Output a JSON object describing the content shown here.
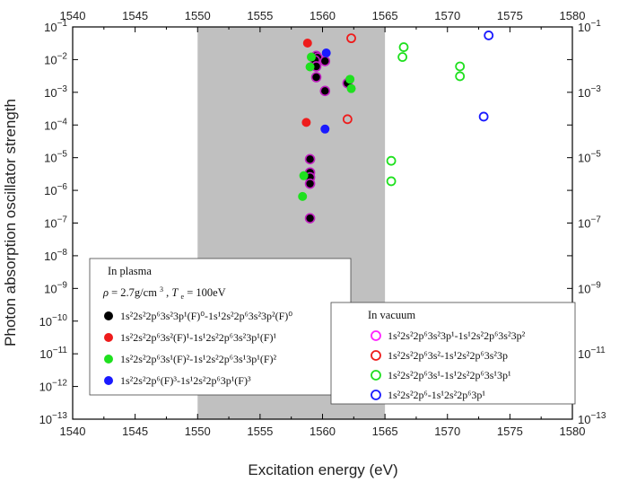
{
  "chart_data": {
    "type": "scatter",
    "xlabel": "Excitation energy (eV)",
    "ylabel": "Photon absorption oscillator strength",
    "xlim": [
      1540,
      1580
    ],
    "ylim_log10": [
      -13,
      -1
    ],
    "x_ticks": [
      "1540",
      "1545",
      "1550",
      "1555",
      "1560",
      "1565",
      "1570",
      "1575",
      "1580"
    ],
    "y_tick_exponents": [
      -13,
      -12,
      -11,
      -10,
      -9,
      -8,
      -7,
      -6,
      -5,
      -4,
      -3,
      -2,
      -1
    ],
    "right_tick_exponents": [
      -13,
      -11,
      -9,
      -7,
      -5,
      -3,
      -1
    ],
    "shaded_region": {
      "x_from": 1550,
      "x_to": 1565,
      "color": "#c0c0c0"
    },
    "legend_plasma": {
      "title": "In plasma",
      "params": {
        "rho": "ρ",
        "rho_value": "= 2.7g/cm",
        "rho_exp": "3",
        "T": "T",
        "T_sub": "e",
        "T_value": "= 100eV"
      },
      "entries": [
        {
          "label": "1s²2s²2p⁶3s²3p¹(F)⁰-1s¹2s²2p⁶3s²3p²(F)⁰",
          "color": "#000000",
          "marker": "filled"
        },
        {
          "label": "1s²2s²2p⁶3s²(F)¹-1s¹2s²2p⁶3s²3p¹(F)¹",
          "color": "#ee1c1c",
          "marker": "filled"
        },
        {
          "label": "1s²2s²2p⁶3s¹(F)²-1s¹2s²2p⁶3s¹3p¹(F)²",
          "color": "#1fe01f",
          "marker": "filled"
        },
        {
          "label": "1s²2s²2p⁶(F)³-1s¹2s²2p⁶3p¹(F)³",
          "color": "#1a1aff",
          "marker": "filled"
        }
      ]
    },
    "legend_vacuum": {
      "title": "In vacuum",
      "entries": [
        {
          "label": "1s²2s²2p⁶3s²3p¹-1s¹2s²2p⁶3s²3p²",
          "color": "#ff22ff",
          "marker": "open"
        },
        {
          "label": "1s²2s²2p⁶3s²-1s¹2s²2p⁶3s²3p",
          "color": "#ee1c1c",
          "marker": "open"
        },
        {
          "label": "1s²2s²2p⁶3s¹-1s¹2s²2p⁶3s¹3p¹",
          "color": "#1fe01f",
          "marker": "open"
        },
        {
          "label": "1s²2s²2p⁶-1s¹2s²2p⁶3p¹",
          "color": "#1a1aff",
          "marker": "open"
        }
      ]
    },
    "series": [
      {
        "name": "1s²2s²2p⁶3s²3p¹(F)⁰-1s¹2s²2p⁶3s²3p²(F)⁰",
        "color": "#000000",
        "marker": "filled",
        "stroke": "#c020c0",
        "points": [
          [
            1559.5,
            0.013
          ],
          [
            1559.6,
            0.0115
          ],
          [
            1559.4,
            0.0095
          ],
          [
            1560.2,
            0.009
          ],
          [
            1559.5,
            0.0062
          ],
          [
            1559.5,
            0.0029
          ],
          [
            1562.0,
            0.0019
          ],
          [
            1560.2,
            0.0011
          ],
          [
            1559.0,
            9e-06
          ],
          [
            1559.0,
            3.5e-06
          ],
          [
            1559.0,
            2.5e-06
          ],
          [
            1559.0,
            1.6e-06
          ],
          [
            1559.0,
            1.4e-07
          ]
        ]
      },
      {
        "name": "1s²2s²2p⁶3s²(F)¹-1s¹2s²2p⁶3s²3p¹(F)¹",
        "color": "#ee1c1c",
        "marker": "filled",
        "points": [
          [
            1558.8,
            0.032
          ],
          [
            1558.7,
            0.00012
          ]
        ]
      },
      {
        "name": "1s²2s²2p⁶3s¹(F)²-1s¹2s²2p⁶3s¹3p¹(F)²",
        "color": "#1fe01f",
        "marker": "filled",
        "points": [
          [
            1559.1,
            0.012
          ],
          [
            1559.0,
            0.006
          ],
          [
            1562.2,
            0.0025
          ],
          [
            1562.3,
            0.0013
          ],
          [
            1558.5,
            2.8e-06
          ],
          [
            1558.4,
            6.5e-07
          ]
        ]
      },
      {
        "name": "1s²2s²2p⁶(F)³-1s¹2s²2p⁶3p¹(F)³",
        "color": "#1a1aff",
        "marker": "filled",
        "points": [
          [
            1560.3,
            0.016
          ],
          [
            1560.2,
            7.5e-05
          ]
        ]
      },
      {
        "name": "1s²2s²2p⁶3s²3p¹-1s¹2s²2p⁶3s²3p²",
        "color": "#ff22ff",
        "marker": "open",
        "points": []
      },
      {
        "name": "1s²2s²2p⁶3s²-1s¹2s²2p⁶3s²3p",
        "color": "#ee1c1c",
        "marker": "open",
        "points": [
          [
            1562.3,
            0.045
          ],
          [
            1562.0,
            0.00015
          ]
        ]
      },
      {
        "name": "1s²2s²2p⁶3s¹-1s¹2s²2p⁶3s¹3p¹",
        "color": "#1fe01f",
        "marker": "open",
        "points": [
          [
            1566.5,
            0.024
          ],
          [
            1566.4,
            0.012
          ],
          [
            1571.0,
            0.0062
          ],
          [
            1571.0,
            0.0031
          ],
          [
            1565.5,
            8e-06
          ],
          [
            1565.5,
            1.9e-06
          ]
        ]
      },
      {
        "name": "1s²2s²2p⁶-1s¹2s²2p⁶3p¹",
        "color": "#1a1aff",
        "marker": "open",
        "points": [
          [
            1573.3,
            0.055
          ],
          [
            1572.9,
            0.00018
          ]
        ]
      }
    ]
  }
}
